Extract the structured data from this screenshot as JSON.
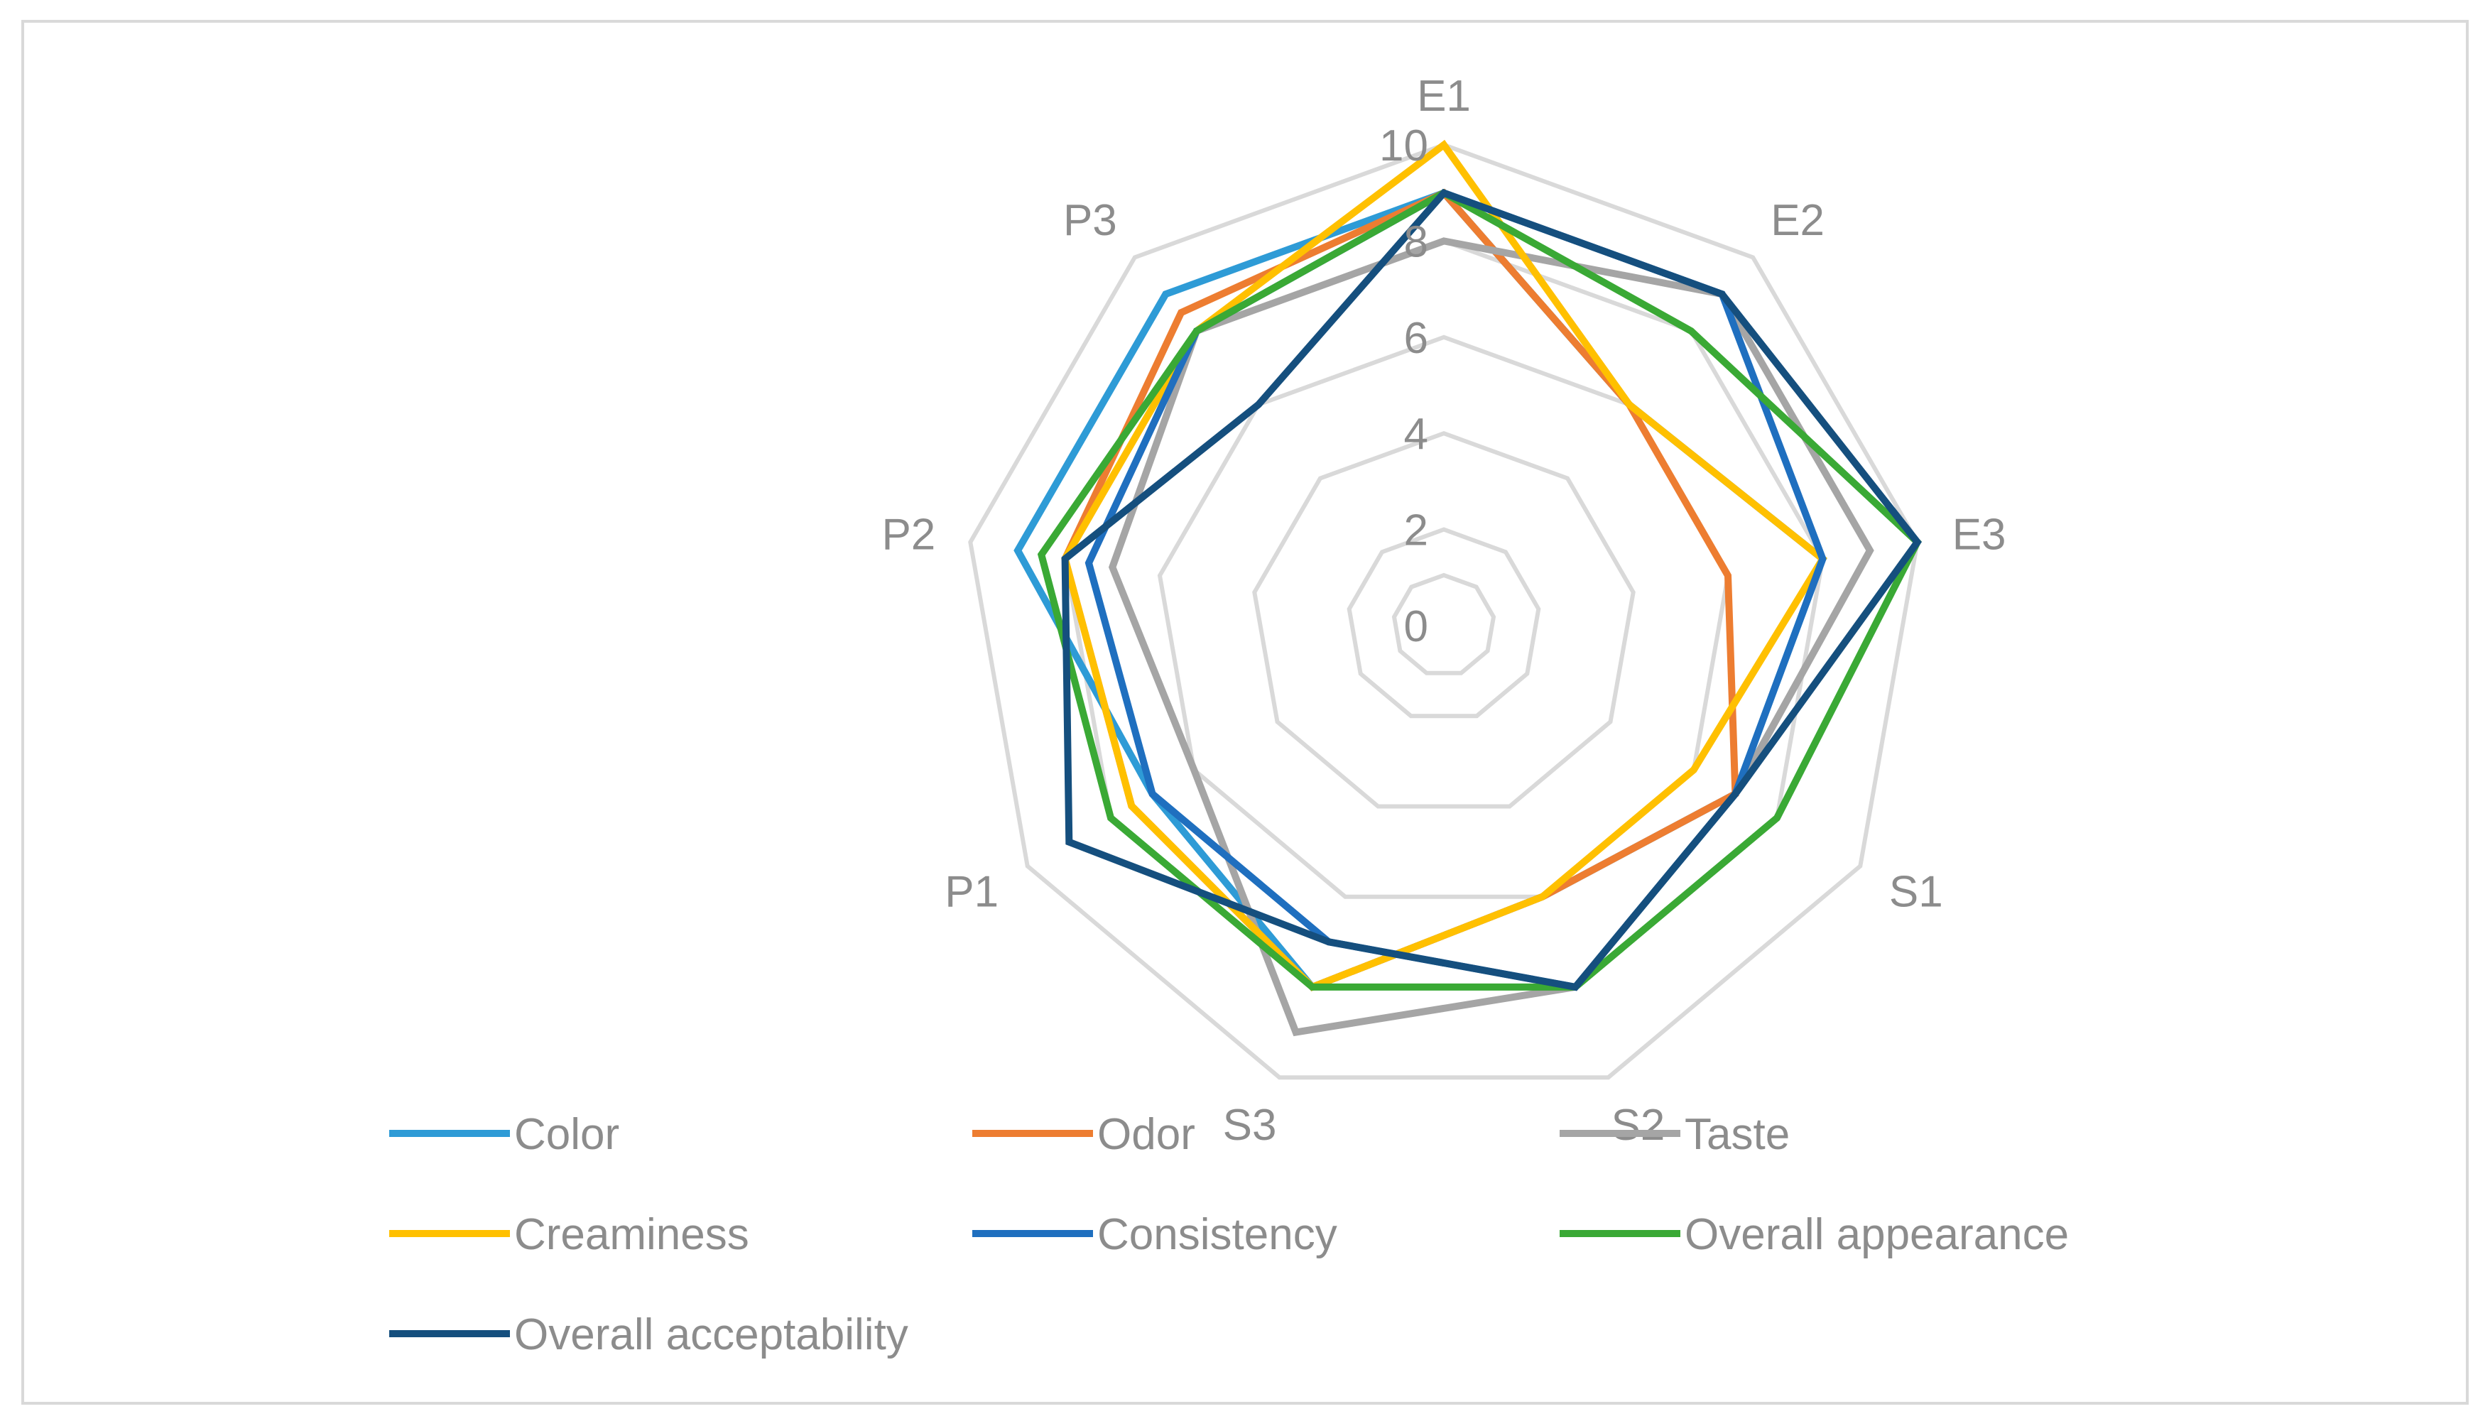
{
  "chart_data": {
    "type": "radar",
    "title": "",
    "categories": [
      "E1",
      "E2",
      "E3",
      "S1",
      "S2",
      "S3",
      "P1",
      "P2",
      "P3"
    ],
    "r_range": [
      0,
      10
    ],
    "r_ticks": [
      "0",
      "2",
      "4",
      "6",
      "8",
      "10"
    ],
    "gridlines": true,
    "legend_position": "bottom",
    "series": [
      {
        "name": "Color",
        "color": "#2E9BD6",
        "values": [
          9,
          6,
          8,
          7,
          6,
          8,
          7,
          9,
          9
        ]
      },
      {
        "name": "Odor",
        "color": "#ED7D31",
        "values": [
          9,
          6,
          6,
          7,
          6,
          8,
          7.5,
          8,
          8.5
        ]
      },
      {
        "name": "Taste",
        "color": "#A5A5A5",
        "values": [
          8,
          9,
          9,
          7,
          8,
          9,
          6,
          7,
          8
        ]
      },
      {
        "name": "Creaminess",
        "color": "#FFC000",
        "values": [
          10,
          6,
          8,
          6,
          6,
          8,
          7.5,
          8,
          8
        ]
      },
      {
        "name": "Consistency",
        "color": "#1F6FBF",
        "values": [
          9,
          9,
          8,
          7,
          8,
          7,
          7,
          7.5,
          8
        ]
      },
      {
        "name": "Overall appearance",
        "color": "#3AA935",
        "values": [
          9,
          8,
          10,
          8,
          8,
          8,
          8,
          8.5,
          8
        ]
      },
      {
        "name": "Overall acceptability",
        "color": "#154F7E",
        "values": [
          9,
          9,
          10,
          7,
          8,
          7,
          9,
          8,
          6
        ]
      }
    ]
  }
}
